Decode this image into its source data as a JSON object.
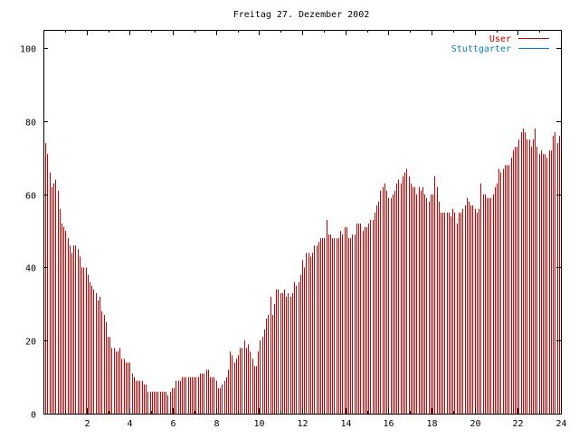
{
  "chart_data": {
    "type": "bar",
    "title": "Freitag 27. Dezember 2002",
    "xlabel": "",
    "ylabel": "",
    "xlim": [
      0,
      24
    ],
    "ylim": [
      0,
      105
    ],
    "x_ticks": [
      "2",
      "4",
      "6",
      "8",
      "10",
      "12",
      "14",
      "16",
      "18",
      "20",
      "22",
      "24"
    ],
    "y_ticks": [
      "0",
      "20",
      "40",
      "60",
      "80",
      "100"
    ],
    "grid": false,
    "legend_position": "top-right",
    "series": [
      {
        "name": "User",
        "color": "#cc0000",
        "style": "bars",
        "values": [
          75,
          74,
          71,
          66,
          62,
          63,
          64,
          61,
          56,
          52,
          51,
          50,
          48,
          46,
          44,
          46,
          46,
          45,
          43,
          40,
          40,
          40,
          38,
          36,
          35,
          34,
          33,
          31,
          32,
          28,
          27,
          25,
          21,
          21,
          18,
          18,
          17,
          17,
          18,
          15,
          15,
          14,
          14,
          14,
          11,
          10,
          9,
          9,
          9,
          9,
          8,
          8,
          6,
          6,
          6,
          6,
          6,
          6,
          6,
          6,
          6,
          6,
          5,
          6,
          7,
          7,
          9,
          9,
          9,
          10,
          10,
          10,
          10,
          10,
          10,
          10,
          10,
          10,
          11,
          11,
          11,
          12,
          12,
          10,
          10,
          10,
          9,
          7,
          7,
          8,
          9,
          10,
          12,
          17,
          16,
          14,
          15,
          16,
          18,
          18,
          20,
          18,
          19,
          17,
          15,
          13,
          13,
          17,
          20,
          21,
          23,
          26,
          27,
          32,
          27,
          30,
          34,
          34,
          33,
          33,
          34,
          32,
          33,
          32,
          33,
          36,
          35,
          36,
          38,
          42,
          40,
          44,
          44,
          43,
          44,
          46,
          46,
          47,
          48,
          48,
          48,
          53,
          49,
          49,
          48,
          48,
          48,
          48,
          50,
          49,
          51,
          51,
          48,
          48,
          49,
          49,
          52,
          52,
          52,
          50,
          51,
          51,
          52,
          53,
          53,
          55,
          57,
          58,
          61,
          62,
          63,
          61,
          59,
          59,
          60,
          61,
          63,
          64,
          63,
          65,
          66,
          67,
          65,
          63,
          62,
          62,
          60,
          62,
          61,
          62,
          60,
          59,
          58,
          60,
          60,
          65,
          62,
          58,
          55,
          55,
          55,
          55,
          55,
          54,
          56,
          55,
          52,
          55,
          55,
          56,
          57,
          59,
          58,
          57,
          57,
          56,
          55,
          56,
          63,
          60,
          60,
          59,
          59,
          59,
          60,
          62,
          63,
          67,
          66,
          67,
          68,
          68,
          68,
          70,
          72,
          73,
          73,
          75,
          77,
          78,
          77,
          75,
          75,
          73,
          75,
          78,
          73,
          71,
          72,
          71,
          71,
          70,
          72,
          72,
          76,
          77,
          74,
          76
        ]
      },
      {
        "name": "Stuttgarter",
        "color": "#0080c0",
        "style": "line",
        "values": []
      }
    ]
  }
}
